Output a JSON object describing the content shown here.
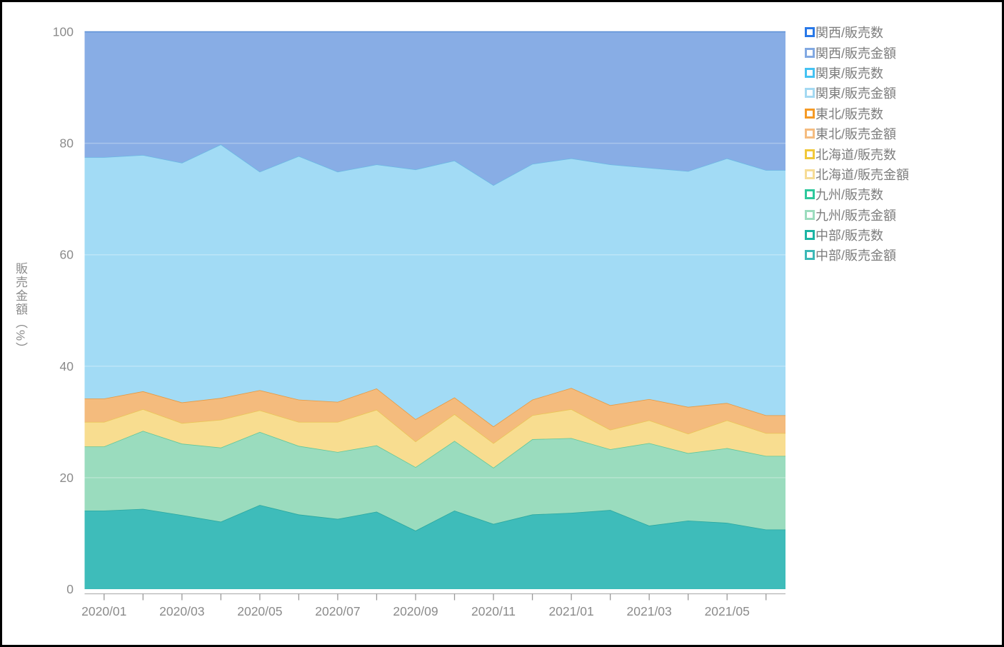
{
  "chart_data": {
    "type": "area",
    "stacked": true,
    "percent_stacked": true,
    "title": "",
    "xlabel": "",
    "ylabel": "販売金額（%）",
    "ylim": [
      0,
      100
    ],
    "y_ticks": [
      0,
      20,
      40,
      60,
      80,
      100
    ],
    "grid": "subtle horizontal lines at 20/40/60/80",
    "legend_position": "right-top",
    "x_categories": [
      "2020/01",
      "2020/02",
      "2020/03",
      "2020/04",
      "2020/05",
      "2020/06",
      "2020/07",
      "2020/08",
      "2020/09",
      "2020/10",
      "2020/11",
      "2020/12",
      "2021/01",
      "2021/02",
      "2021/03",
      "2021/04",
      "2021/05",
      "2021/06"
    ],
    "x_tick_label_every": 2,
    "x_tick_labels": [
      "2020/01",
      "2020/03",
      "2020/05",
      "2020/07",
      "2020/09",
      "2020/11",
      "2021/01",
      "2021/03",
      "2021/05"
    ],
    "series": [
      {
        "name": "中部/販売金額",
        "color": "#3EBCBA",
        "line": "#2BA8A0",
        "values": [
          14.1,
          14.4,
          13.3,
          12.1,
          15.1,
          13.4,
          12.6,
          13.9,
          10.5,
          14.1,
          11.7,
          13.4,
          13.7,
          14.2,
          11.4,
          12.3,
          11.9,
          10.7
        ]
      },
      {
        "name": "九州/販売金額",
        "color": "#9ADCBE",
        "line": "#62C79A",
        "values": [
          11.5,
          14.0,
          12.8,
          13.3,
          13.1,
          12.3,
          12.0,
          11.9,
          11.4,
          12.5,
          10.1,
          13.5,
          13.4,
          10.9,
          14.8,
          12.1,
          13.4,
          13.2
        ]
      },
      {
        "name": "北海道/販売金額",
        "color": "#F8DD90",
        "line": "#EAC558",
        "values": [
          4.4,
          3.9,
          3.7,
          5.0,
          3.9,
          4.3,
          5.4,
          6.4,
          4.6,
          4.8,
          4.4,
          4.3,
          5.2,
          3.5,
          4.1,
          3.5,
          5.0,
          4.1
        ]
      },
      {
        "name": "東北/販売金額",
        "color": "#F4BB7D",
        "line": "#E8993F",
        "values": [
          4.2,
          3.2,
          3.7,
          3.9,
          3.6,
          4.0,
          3.6,
          3.8,
          4.0,
          3.0,
          3.0,
          2.8,
          3.8,
          4.4,
          3.8,
          4.8,
          3.1,
          3.2
        ]
      },
      {
        "name": "関東/販売金額",
        "color": "#A2DBF5",
        "line": "#6CB8E4",
        "values": [
          43.3,
          42.4,
          43.0,
          45.5,
          39.2,
          43.7,
          41.3,
          40.2,
          44.8,
          42.5,
          43.3,
          42.3,
          41.2,
          43.2,
          41.5,
          42.3,
          43.9,
          44.0
        ]
      },
      {
        "name": "関西/販売金額",
        "color": "#88ADE5",
        "line": "#5C90D6",
        "values": [
          22.5,
          22.1,
          23.5,
          20.2,
          25.1,
          22.3,
          25.1,
          23.8,
          24.7,
          23.1,
          27.5,
          23.7,
          22.7,
          23.8,
          24.4,
          25.0,
          22.7,
          24.8
        ]
      }
    ],
    "legend": [
      {
        "label": "関西/販売数",
        "color": "#2878E8"
      },
      {
        "label": "関西/販売金額",
        "color": "#82A9E2"
      },
      {
        "label": "関東/販売数",
        "color": "#45C2F2"
      },
      {
        "label": "関東/販売金額",
        "color": "#A4D9F2"
      },
      {
        "label": "東北/販売数",
        "color": "#F59A26"
      },
      {
        "label": "東北/販売金額",
        "color": "#F5BC80"
      },
      {
        "label": "北海道/販売数",
        "color": "#F1C83A"
      },
      {
        "label": "北海道/販売金額",
        "color": "#F6DC96"
      },
      {
        "label": "九州/販売数",
        "color": "#2EC89C"
      },
      {
        "label": "九州/販売金額",
        "color": "#9CDCBE"
      },
      {
        "label": "中部/販売数",
        "color": "#1CB4A4"
      },
      {
        "label": "中部/販売金額",
        "color": "#3CB8B6"
      }
    ],
    "axis_style": {
      "axis_line_color": "#B3B3B3",
      "tick_color": "#999999",
      "label_color": "#8B8B8B"
    }
  }
}
